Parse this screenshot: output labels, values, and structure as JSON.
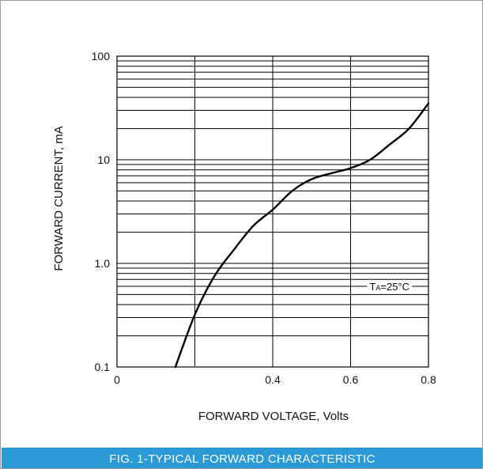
{
  "caption": "FIG. 1-TYPICAL FORWARD CHARACTERISTIC",
  "colors": {
    "caption_bg": "#2a9bd6",
    "caption_text": "#ffffff",
    "curve": "#000000",
    "grid": "#000000"
  },
  "chart_data": {
    "type": "line",
    "title": "",
    "xlabel": "FORWARD VOLTAGE, Volts",
    "ylabel": "FORWARD CURRENT, mA",
    "xlim": [
      0,
      0.8
    ],
    "ylim": [
      0.1,
      100
    ],
    "yscale": "log",
    "grid": true,
    "x_ticks": [
      0,
      0.2,
      0.4,
      0.6,
      0.8
    ],
    "x_tick_labels": [
      "0",
      "",
      "0.4",
      "0.6",
      "0.8"
    ],
    "y_ticks": [
      0.1,
      1,
      10,
      100
    ],
    "y_tick_labels": [
      "0.1",
      "1.0",
      "10",
      "100"
    ],
    "annotation": {
      "prefix": "T",
      "subscript": "A",
      "text": "=25°C",
      "x": 0.7,
      "y": 0.6
    },
    "series": [
      {
        "name": "",
        "x": [
          0.15,
          0.2,
          0.25,
          0.3,
          0.35,
          0.4,
          0.45,
          0.5,
          0.55,
          0.6,
          0.65,
          0.7,
          0.75,
          0.8
        ],
        "y": [
          0.1,
          0.32,
          0.75,
          1.35,
          2.3,
          3.3,
          5.0,
          6.5,
          7.4,
          8.3,
          10,
          14,
          20,
          35
        ]
      }
    ]
  }
}
